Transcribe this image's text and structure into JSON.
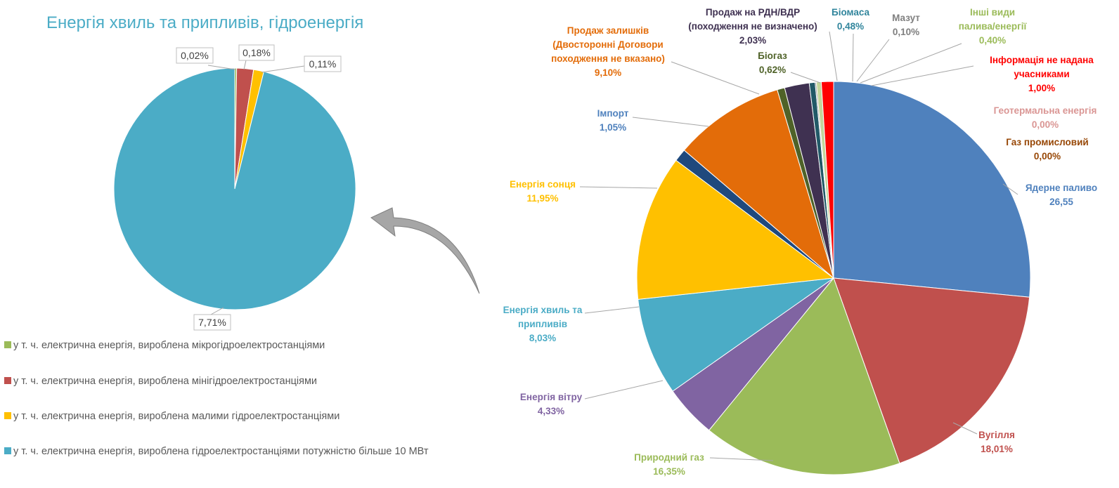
{
  "chart_data": [
    {
      "type": "pie",
      "title": "Енергія хвиль та припливів, гідроенергія",
      "slices": [
        {
          "name": "у т. ч. електрична енергія, вироблена мікрогідроелектростанціями",
          "value": 0.02,
          "label": "0,02%",
          "color": "#9bbb59"
        },
        {
          "name": "у т. ч. електрична енергія, вироблена мінігідроелектростанціями",
          "value": 0.18,
          "label": "0,18%",
          "color": "#c0504d"
        },
        {
          "name": "у т. ч. електрична енергія, вироблена малими гідроелектростанціями",
          "value": 0.11,
          "label": "0,11%",
          "color": "#ffc000"
        },
        {
          "name": "у т. ч. електрична енергія, вироблена гідроелектростанціями потужністю більше 10 МВт",
          "value": 7.71,
          "label": "7,71%",
          "color": "#4bacc6"
        }
      ],
      "legend_position": "bottom-left"
    },
    {
      "type": "pie",
      "slices": [
        {
          "name": "Ядерне паливо",
          "value": 26.55,
          "value_label": "26,55",
          "color": "#4f81bd"
        },
        {
          "name": "Вугілля",
          "value": 18.01,
          "value_label": "18,01%",
          "color": "#c0504d"
        },
        {
          "name": "Природний газ",
          "value": 16.35,
          "value_label": "16,35%",
          "color": "#9bbb59"
        },
        {
          "name": "Енергія вітру",
          "value": 4.33,
          "value_label": "4,33%",
          "color": "#8064a2"
        },
        {
          "name": "Енергія хвиль та припливів",
          "value": 8.03,
          "value_label": "8,03%",
          "color": "#4bacc6"
        },
        {
          "name": "Енергія сонця",
          "value": 11.95,
          "value_label": "11,95%",
          "color": "#ffc000"
        },
        {
          "name": "Імпорт",
          "value": 1.05,
          "value_label": "1,05%",
          "color": "#1f497d"
        },
        {
          "name": "Продаж залишків (Двосторонні Договори походження не вказано)",
          "value": 9.1,
          "value_label": "9,10%",
          "color": "#e36c09"
        },
        {
          "name": "Біогаз",
          "value": 0.62,
          "value_label": "0,62%",
          "color": "#4f6228"
        },
        {
          "name": "Продаж на РДН/ВДР (походження не визначено)",
          "value": 2.03,
          "value_label": "2,03%",
          "color": "#3f3151"
        },
        {
          "name": "Біомаса",
          "value": 0.48,
          "value_label": "0,48%",
          "color": "#215967"
        },
        {
          "name": "Мазут",
          "value": 0.1,
          "value_label": "0,10%",
          "color": "#7f7f7f"
        },
        {
          "name": "Інші види палива/енергії",
          "value": 0.4,
          "value_label": "0,40%",
          "color": "#c3d69b"
        },
        {
          "name": "Інформація не надана учасниками",
          "value": 1.0,
          "value_label": "1,00%",
          "color": "#ff0000"
        },
        {
          "name": "Геотермальна енергія",
          "value": 0.0,
          "value_label": "0,00%",
          "color": "#da9694"
        },
        {
          "name": "Газ промисловий",
          "value": 0.0,
          "value_label": "0,00%",
          "color": "#974706"
        }
      ]
    }
  ],
  "left_labels": {
    "micro": "0,02%",
    "mini": "0,18%",
    "small": "0,11%",
    "large": "7,71%"
  },
  "legend": [
    {
      "text": "у т. ч. електрична енергія, вироблена мікрогідроелектростанціями",
      "color": "#9bbb59"
    },
    {
      "text": "у т. ч. електрична енергія, вироблена мінігідроелектростанціями",
      "color": "#c0504d"
    },
    {
      "text": "у т. ч. електрична енергія, вироблена малими гідроелектростанціями",
      "color": "#ffc000"
    },
    {
      "text": "у т. ч. електрична енергія, вироблена гідроелектростанціями потужністю більше 10 МВт",
      "color": "#4bacc6"
    }
  ],
  "right_labels": {
    "nuclear": {
      "name": "Ядерне паливо",
      "value": "26,55",
      "color": "#4f81bd"
    },
    "coal": {
      "name": "Вугілля",
      "value": "18,01%",
      "color": "#c0504d"
    },
    "gas": {
      "name": "Природний газ",
      "value": "16,35%",
      "color": "#9bbb59"
    },
    "wind": {
      "name": "Енергія вітру",
      "value": "4,33%",
      "color": "#8064a2"
    },
    "wave": {
      "line1": "Енергія хвиль та",
      "line2": "припливів",
      "value": "8,03%",
      "color": "#4bacc6"
    },
    "solar": {
      "name": "Енергія сонця",
      "value": "11,95%",
      "color": "#ffc000"
    },
    "import": {
      "name": "Імпорт",
      "value": "1,05%",
      "color": "#1f497d"
    },
    "residual": {
      "line1": "Продаж залишків",
      "line2": "(Двосторонні Договори",
      "line3": "походження не вказано)",
      "value": "9,10%",
      "color": "#e36c09"
    },
    "biogas": {
      "name": "Біогаз",
      "value": "0,62%",
      "color": "#4f6228"
    },
    "market": {
      "line1": "Продаж на РДН/ВДР",
      "line2": "(походження не визначено)",
      "value": "2,03%",
      "color": "#3f3151"
    },
    "biomass": {
      "name": "Біомаса",
      "value": "0,48%",
      "color": "#215967"
    },
    "fuel_oil": {
      "name": "Мазут",
      "value": "0,10%",
      "color": "#7f7f7f"
    },
    "other": {
      "line1": "Інші види",
      "line2": "палива/енергії",
      "value": "0,40%",
      "color": "#9bbb59"
    },
    "noinfo": {
      "line1": "Інформація не надана",
      "line2": "учасниками",
      "value": "1,00%",
      "color": "#ff0000"
    },
    "geo": {
      "name": "Геотермальна енергія",
      "value": "0,00%",
      "color": "#da9694"
    },
    "indgas": {
      "name": "Газ промисловий",
      "value": "0,00%",
      "color": "#974706"
    }
  }
}
